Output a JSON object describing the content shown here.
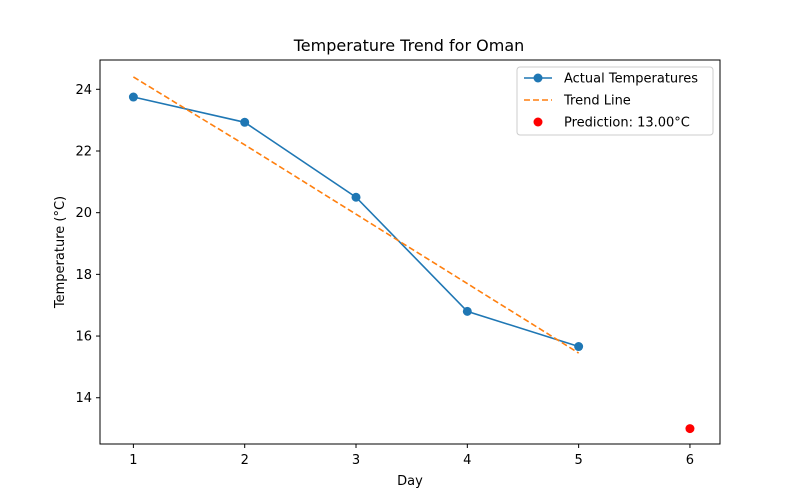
{
  "chart_data": {
    "type": "line",
    "title": "Temperature Trend for Oman",
    "xlabel": "Day",
    "ylabel": "Temperature (°C)",
    "xlim": [
      0.7,
      6.27
    ],
    "ylim": [
      12.5,
      24.95
    ],
    "xticks": [
      1,
      2,
      3,
      4,
      5,
      6
    ],
    "yticks": [
      14,
      16,
      18,
      20,
      22,
      24
    ],
    "grid": false,
    "legend_position": "top-right",
    "series": [
      {
        "name": "Actual Temperatures",
        "kind": "line-marker",
        "color": "#1f77b4",
        "x": [
          1,
          2,
          3,
          4,
          5
        ],
        "y": [
          23.75,
          22.93,
          20.5,
          16.8,
          15.66
        ]
      },
      {
        "name": "Trend Line",
        "kind": "dashed-line",
        "color": "#ff7f0e",
        "x": [
          1,
          2,
          3,
          4,
          5
        ],
        "y": [
          24.4,
          22.2,
          19.95,
          17.7,
          15.45
        ]
      },
      {
        "name": "Prediction: 13.00°C",
        "kind": "scatter",
        "color": "#ff0000",
        "x": [
          6
        ],
        "y": [
          13.0
        ]
      }
    ]
  }
}
